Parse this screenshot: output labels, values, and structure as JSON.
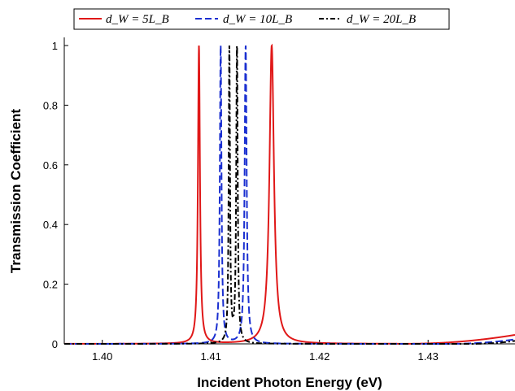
{
  "chart_data": {
    "type": "line",
    "xlabel": "Incident Photon Energy (eV)",
    "ylabel": "Transmission Coefficient",
    "xlim": [
      1.3965,
      1.438
    ],
    "ylim": [
      0,
      1
    ],
    "x_ticks": [
      1.4,
      1.41,
      1.42,
      1.43
    ],
    "x_tick_labels": [
      "1.40",
      "1.41",
      "1.42",
      "1.43"
    ],
    "y_ticks": [
      0,
      0.2,
      0.4,
      0.6,
      0.8,
      1
    ],
    "y_tick_labels": [
      "0",
      "0.2",
      "0.4",
      "0.6",
      "0.8",
      "1"
    ],
    "grid": false,
    "legend_position": "top",
    "series": [
      {
        "name": "d_W = 5L_B",
        "color": "#e01818",
        "dash": "solid",
        "resonances": [
          {
            "center": 1.4089,
            "halfwidth": 0.00011
          },
          {
            "center": 1.4156,
            "halfwidth": 0.00025
          }
        ],
        "tail": {
          "start": 1.428,
          "end_value": 0.03
        }
      },
      {
        "name": "d_W = 10L_B",
        "color": "#1a2fd0",
        "dash": "dashed",
        "resonances": [
          {
            "center": 1.4109,
            "halfwidth": 9e-05
          },
          {
            "center": 1.4132,
            "halfwidth": 0.00011
          }
        ],
        "tail": {
          "start": 1.432,
          "end_value": 0.015
        }
      },
      {
        "name": "d_W = 20L_B",
        "color": "#000000",
        "dash": "dash-dot",
        "resonances": [
          {
            "center": 1.4117,
            "halfwidth": 7e-05
          },
          {
            "center": 1.4124,
            "halfwidth": 8e-05
          }
        ],
        "tail": {
          "start": 1.434,
          "end_value": 0.01
        }
      }
    ]
  },
  "legend": {
    "labels": [
      "d_W = 5L_B",
      "d_W = 10L_B",
      "d_W = 20L_B"
    ]
  }
}
